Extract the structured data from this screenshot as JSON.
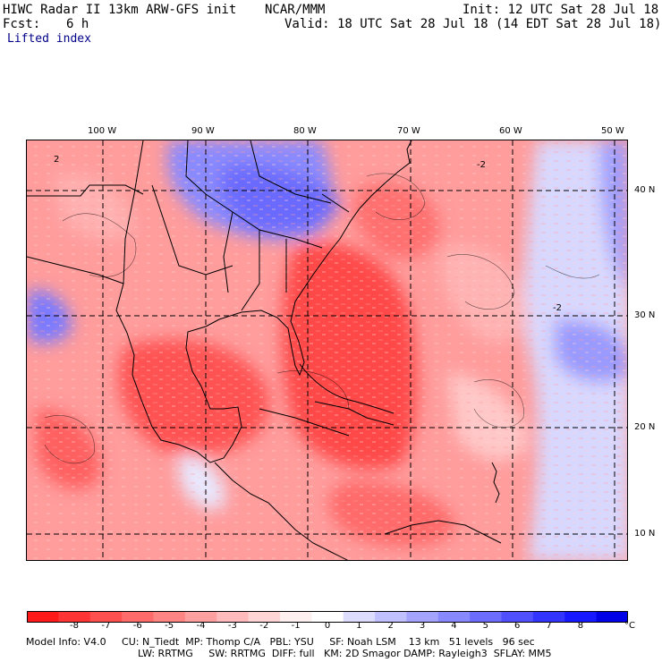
{
  "header": {
    "model_title": "HIWC Radar II 13km ARW-GFS init",
    "org": "NCAR/MMM",
    "init": "Init: 12 UTC Sat 28 Jul 18",
    "fcst_label": "Fcst:",
    "fcst_value": "6 h",
    "valid": "Valid: 18 UTC Sat 28 Jul 18 (14 EDT Sat 28 Jul 18)",
    "field": "Lifted index"
  },
  "map": {
    "longitude_labels": [
      "100 W",
      "90 W",
      "80 W",
      "70 W",
      "60 W",
      "50 W"
    ],
    "latitude_labels": [
      "40 N",
      "30 N",
      "20 N",
      "10 N"
    ],
    "contour_labels": [
      "2",
      "-2",
      "-2"
    ]
  },
  "colorbar": {
    "labels": [
      "-8",
      "-7",
      "-6",
      "-5",
      "-4",
      "-3",
      "-2",
      "-1",
      "0",
      "1",
      "2",
      "3",
      "4",
      "5",
      "6",
      "7",
      "8"
    ],
    "unit": "°C",
    "colors": [
      "#ff1a1a",
      "#ff3535",
      "#ff4f4f",
      "#ff6a6a",
      "#ff8585",
      "#ffa0a0",
      "#ffbbbb",
      "#ffd5d5",
      "#fff0f0",
      "#ffffff",
      "#dcdcff",
      "#c0c0ff",
      "#a4a4ff",
      "#8888ff",
      "#6c6cff",
      "#5050ff",
      "#3434ff",
      "#1818ff",
      "#0000e6"
    ]
  },
  "footer": {
    "line1": "Model Info: V4.0     CU: N_Tiedt  MP: Thomp C/A   PBL: YSU     SF: Noah LSM    13 km   51 levels   96 sec",
    "line2": "LW: RRTMG     SW: RRTMG  DIFF: full   KM: 2D Smagor DAMP: Rayleigh3  SFLAY: MM5"
  }
}
